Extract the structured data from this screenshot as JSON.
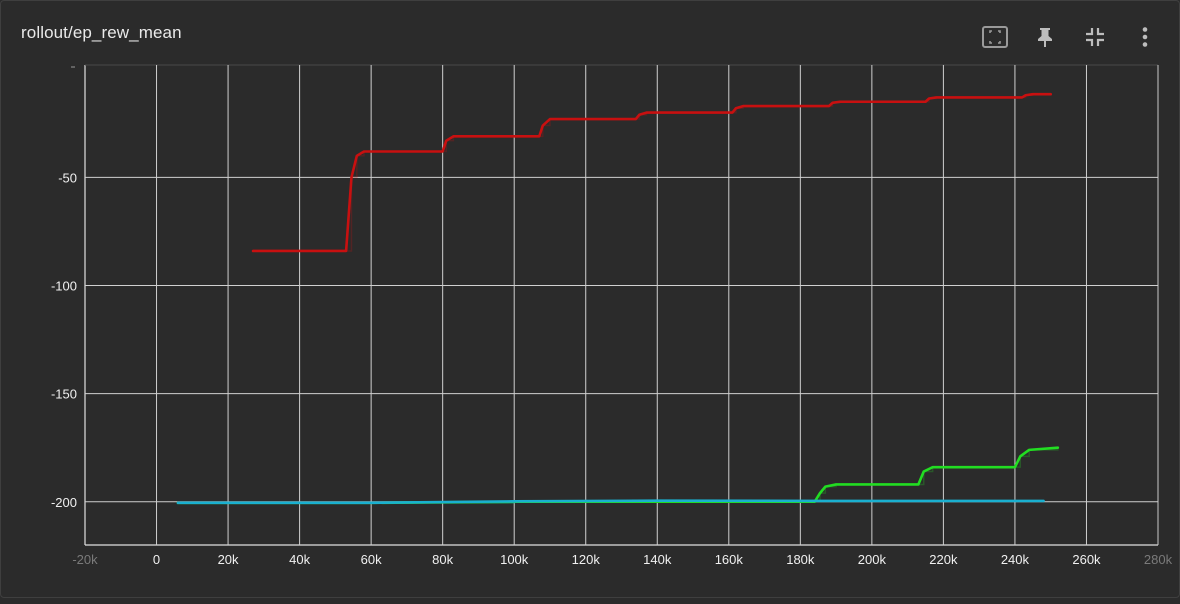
{
  "title": "rollout/ep_rew_mean",
  "toolbar": {
    "icons": [
      "fit-domain-icon",
      "pin-icon",
      "collapse-icon",
      "more-vert-icon"
    ]
  },
  "colors": {
    "background": "#2b2b2b",
    "grid": "#d0d0d0",
    "red": "#c81010",
    "green": "#22dd22",
    "cyan": "#1ab0d0"
  },
  "chart_data": {
    "type": "line",
    "title": "rollout/ep_rew_mean",
    "xlabel": "",
    "ylabel": "",
    "xlim": [
      -20000,
      280000
    ],
    "ylim": [
      -220,
      2
    ],
    "x_ticks": [
      -20000,
      0,
      20000,
      40000,
      60000,
      80000,
      100000,
      120000,
      140000,
      160000,
      180000,
      200000,
      220000,
      240000,
      260000,
      280000
    ],
    "x_tick_labels": [
      "-20k",
      "0",
      "20k",
      "40k",
      "60k",
      "80k",
      "100k",
      "120k",
      "140k",
      "160k",
      "180k",
      "200k",
      "220k",
      "240k",
      "260k",
      "280k"
    ],
    "y_ticks": [
      -200,
      -150,
      -100,
      -50
    ],
    "y_tick_labels": [
      "-200",
      "-150",
      "-100",
      "-50"
    ],
    "grid": true,
    "series": [
      {
        "color": "#c81010",
        "x": [
          27000,
          53000,
          54500,
          56000,
          58000,
          80000,
          81000,
          83000,
          107000,
          108000,
          110000,
          134000,
          135000,
          137000,
          161000,
          162000,
          164000,
          188000,
          189000,
          191000,
          215000,
          216000,
          218000,
          242000,
          243000,
          245000,
          250000
        ],
        "y": [
          -84,
          -84,
          -50,
          -40,
          -38,
          -38,
          -33,
          -31,
          -31,
          -26,
          -23,
          -23,
          -21,
          -20,
          -20,
          -18,
          -17,
          -17,
          -15.5,
          -15,
          -15,
          -13.5,
          -13,
          -13,
          -12,
          -11.5,
          -11.5
        ]
      },
      {
        "color": "#22dd22",
        "x": [
          6000,
          60000,
          100000,
          140000,
          184000,
          185500,
          187000,
          190000,
          213000,
          214500,
          217000,
          240000,
          241500,
          244000,
          252000
        ],
        "y": [
          -200.5,
          -200.5,
          -200,
          -200,
          -200,
          -196,
          -193,
          -192,
          -192,
          -186,
          -184,
          -184,
          -179,
          -176,
          -175
        ]
      },
      {
        "color": "#1ab0d0",
        "x": [
          6000,
          60000,
          100000,
          140000,
          185000,
          248000
        ],
        "y": [
          -200.5,
          -200.5,
          -199.8,
          -199.5,
          -199.6,
          -199.6
        ]
      }
    ]
  }
}
